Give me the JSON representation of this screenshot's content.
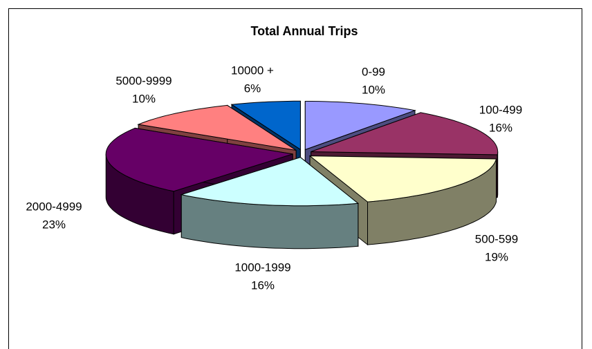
{
  "chart_data": {
    "type": "pie",
    "title": "Total Annual Trips",
    "categories": [
      "0-99",
      "100-499",
      "500-599",
      "1000-1999",
      "2000-4999",
      "5000-9999",
      "10000 +"
    ],
    "values": [
      10,
      16,
      19,
      16,
      23,
      10,
      6
    ],
    "value_labels": [
      "10%",
      "16%",
      "19%",
      "16%",
      "23%",
      "10%",
      "6%"
    ],
    "colors": [
      "#9999ff",
      "#993366",
      "#ffffcc",
      "#ccffff",
      "#660066",
      "#ff8080",
      "#0066cc"
    ],
    "style": "3d-exploded"
  }
}
